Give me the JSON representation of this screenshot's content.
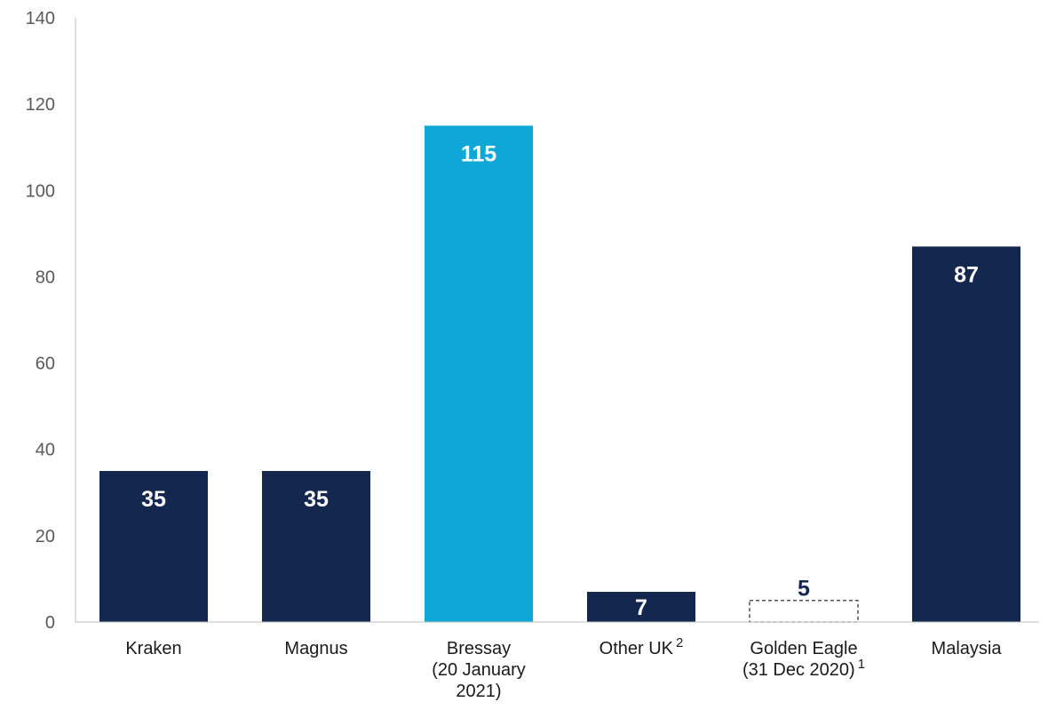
{
  "chart_data": {
    "type": "bar",
    "title": "",
    "xlabel": "",
    "ylabel": "",
    "ylim": [
      0,
      140
    ],
    "yticks": [
      0,
      20,
      40,
      60,
      80,
      100,
      120,
      140
    ],
    "grid": false,
    "categories": [
      {
        "lines": [
          "Kraken"
        ],
        "sup": ""
      },
      {
        "lines": [
          "Magnus"
        ],
        "sup": ""
      },
      {
        "lines": [
          "Bressay",
          "(20 January",
          "2021)"
        ],
        "sup": ""
      },
      {
        "lines": [
          "Other UK"
        ],
        "sup": "2"
      },
      {
        "lines": [
          "Golden Eagle",
          "(31 Dec 2020)"
        ],
        "sup": "1"
      },
      {
        "lines": [
          "Malaysia"
        ],
        "sup": ""
      }
    ],
    "values": [
      35,
      35,
      115,
      7,
      5,
      87
    ],
    "data_labels": [
      "35",
      "35",
      "115",
      "7",
      "5",
      "87"
    ],
    "bar_styles": [
      "solid",
      "solid",
      "solid",
      "solid",
      "dashed-outline",
      "solid"
    ],
    "colors": {
      "primary": "#14274e",
      "highlight": "#0ea7d8",
      "label_on_bar": "#ffffff",
      "label_outside": "#14274e",
      "axis": "#bfbfbf",
      "dashed_outline": "#333333"
    },
    "bar_colors": [
      "primary",
      "primary",
      "highlight",
      "primary",
      "none",
      "primary"
    ]
  }
}
